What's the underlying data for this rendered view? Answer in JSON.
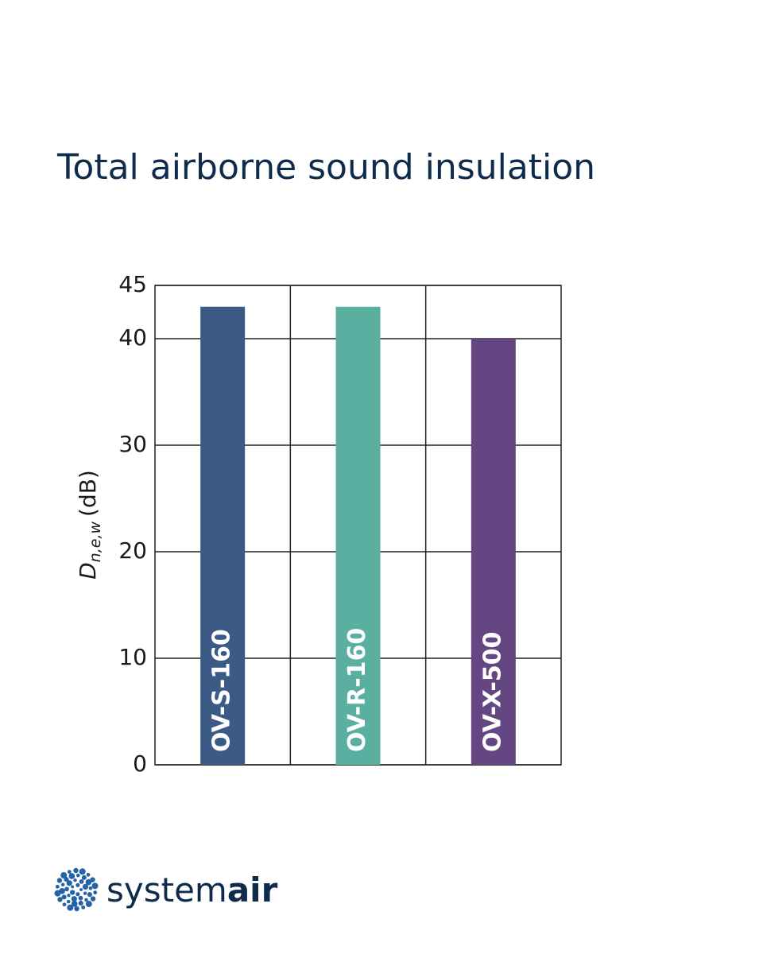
{
  "chart_data": {
    "type": "bar",
    "title": "Total airborne sound insulation",
    "y_label": {
      "symbol": "D",
      "subscript": "n,e,w",
      "unit": "(dB)"
    },
    "categories": [
      "OV-S-160",
      "OV-R-160",
      "OV-X-500"
    ],
    "values": [
      43,
      43,
      40
    ],
    "colors": [
      "#3b5a86",
      "#5aafa1",
      "#644683"
    ],
    "ylim": [
      0,
      45
    ],
    "yticks": [
      0,
      10,
      20,
      30,
      40,
      45
    ],
    "grid": true
  },
  "logo": {
    "light": "system",
    "bold": "air"
  }
}
